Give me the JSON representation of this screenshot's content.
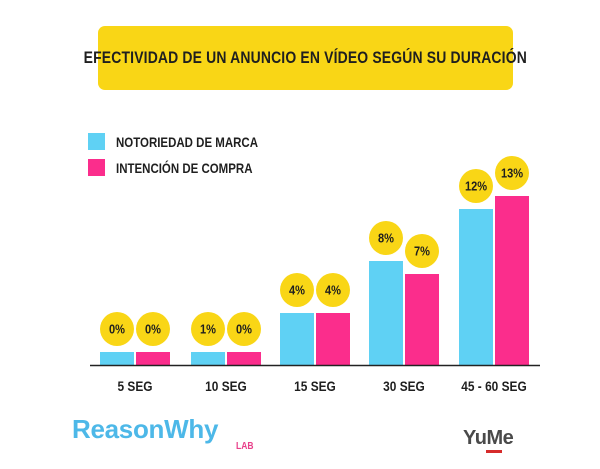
{
  "title": "EFECTIVIDAD DE UN ANUNCIO EN VÍDEO SEGÚN SU DURACIÓN",
  "brands": {
    "reason": "ReasonWhy",
    "lab": "LAB",
    "yume": "YuMe"
  },
  "colors": {
    "title_bg": "#f9d616",
    "badge": "#f9d616",
    "series1": "#5fd1f4",
    "series2": "#fb2d8c",
    "axis": "#222222"
  },
  "chart_data": {
    "type": "bar",
    "title": "EFECTIVIDAD DE UN ANUNCIO EN VÍDEO SEGÚN SU DURACIÓN",
    "categories": [
      "5 SEG",
      "10 SEG",
      "15 SEG",
      "30 SEG",
      "45 - 60 SEG"
    ],
    "series": [
      {
        "name": "NOTORIEDAD DE MARCA",
        "color": "#5fd1f4",
        "values": [
          0,
          1,
          4,
          8,
          12
        ],
        "labels": [
          "0%",
          "1%",
          "4%",
          "8%",
          "12%"
        ]
      },
      {
        "name": "INTENCIÓN DE COMPRA",
        "color": "#fb2d8c",
        "values": [
          0,
          0,
          4,
          7,
          13
        ],
        "labels": [
          "0%",
          "0%",
          "4%",
          "7%",
          "13%"
        ]
      }
    ],
    "legend": "top-left",
    "grid": false
  }
}
